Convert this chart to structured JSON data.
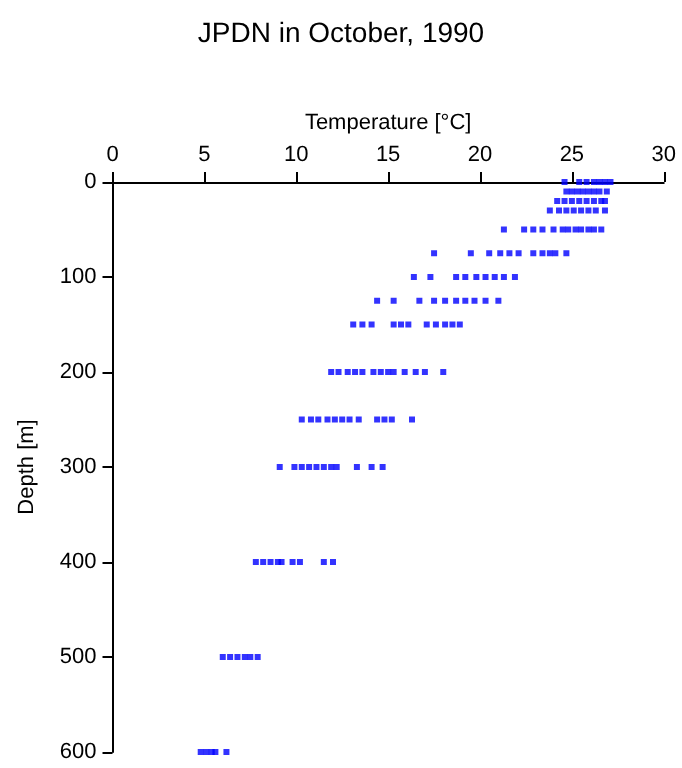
{
  "chart_data": {
    "type": "scatter",
    "title": "JPDN in October, 1990",
    "xlabel": "Temperature [°C]",
    "ylabel": "Depth [m]",
    "xlim": [
      0,
      30
    ],
    "xticks": [
      0,
      5,
      10,
      15,
      20,
      25,
      30
    ],
    "ylim": [
      600,
      0
    ],
    "yticks": [
      0,
      100,
      200,
      300,
      400,
      500,
      600
    ],
    "marker": "square",
    "series": [
      {
        "color": "#0000ff",
        "x": [
          24.6,
          25.4,
          25.8,
          26.2,
          26.5,
          26.8,
          27.1,
          24.7,
          25.0,
          25.3,
          25.6,
          25.9,
          26.2,
          26.5,
          26.9,
          24.2,
          24.6,
          25.0,
          25.4,
          25.8,
          26.2,
          26.6,
          26.8,
          23.8,
          24.3,
          24.7,
          25.1,
          25.5,
          25.9,
          26.3,
          26.8,
          21.3,
          22.4,
          22.9,
          23.4,
          24.0,
          24.5,
          24.8,
          25.2,
          25.5,
          25.9,
          26.2,
          26.6,
          17.5,
          19.5,
          20.5,
          21.1,
          21.6,
          22.1,
          22.9,
          23.4,
          23.8,
          24.1,
          24.7,
          16.4,
          17.3,
          18.7,
          19.2,
          19.8,
          20.3,
          20.8,
          21.3,
          21.9,
          14.4,
          15.3,
          16.7,
          17.5,
          18.1,
          18.7,
          19.2,
          19.7,
          20.3,
          21.0,
          13.1,
          13.6,
          14.1,
          15.3,
          15.7,
          16.1,
          17.1,
          17.6,
          18.1,
          18.5,
          18.9,
          11.9,
          12.3,
          12.8,
          13.2,
          13.6,
          14.2,
          14.6,
          15.0,
          15.3,
          15.9,
          16.5,
          17.0,
          18.0,
          10.3,
          10.8,
          11.2,
          11.7,
          12.1,
          12.5,
          12.9,
          13.4,
          14.4,
          14.8,
          15.2,
          16.3,
          9.1,
          9.9,
          10.3,
          10.7,
          11.1,
          11.5,
          11.9,
          12.2,
          13.3,
          14.1,
          14.7,
          7.8,
          8.2,
          8.6,
          9.0,
          9.2,
          9.8,
          10.2,
          11.5,
          12.0,
          6.0,
          6.4,
          6.8,
          7.2,
          7.5,
          7.9,
          4.8,
          5.1,
          5.4,
          5.6,
          6.2
        ],
        "values": [
          0,
          0,
          0,
          0,
          0,
          0,
          0,
          10,
          10,
          10,
          10,
          10,
          10,
          10,
          10,
          20,
          20,
          20,
          20,
          20,
          20,
          20,
          20,
          30,
          30,
          30,
          30,
          30,
          30,
          30,
          30,
          50,
          50,
          50,
          50,
          50,
          50,
          50,
          50,
          50,
          50,
          50,
          50,
          75,
          75,
          75,
          75,
          75,
          75,
          75,
          75,
          75,
          75,
          75,
          100,
          100,
          100,
          100,
          100,
          100,
          100,
          100,
          100,
          125,
          125,
          125,
          125,
          125,
          125,
          125,
          125,
          125,
          125,
          150,
          150,
          150,
          150,
          150,
          150,
          150,
          150,
          150,
          150,
          150,
          200,
          200,
          200,
          200,
          200,
          200,
          200,
          200,
          200,
          200,
          200,
          200,
          200,
          250,
          250,
          250,
          250,
          250,
          250,
          250,
          250,
          250,
          250,
          250,
          250,
          300,
          300,
          300,
          300,
          300,
          300,
          300,
          300,
          300,
          300,
          300,
          400,
          400,
          400,
          400,
          400,
          400,
          400,
          400,
          400,
          500,
          500,
          500,
          500,
          500,
          500,
          600,
          600,
          600,
          600,
          600
        ]
      }
    ]
  }
}
